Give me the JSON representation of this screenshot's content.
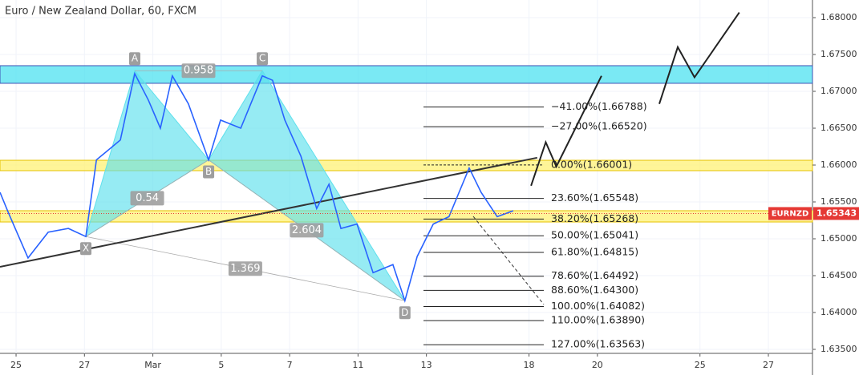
{
  "chart_data": {
    "type": "line",
    "title": "Euro / New Zealand Dollar, 60, FXCM",
    "x": [
      -0.47,
      -0.23,
      0.35,
      0.94,
      1.53,
      2.04,
      2.35,
      3.05,
      3.47,
      3.87,
      4.22,
      4.57,
      5.04,
      5.63,
      5.98,
      6.57,
      7.2,
      7.5,
      7.86,
      8.33,
      8.79,
      9.15,
      9.5,
      9.97,
      10.44,
      11.02,
      11.37,
      11.73,
      12.2,
      12.66,
      13.25,
      13.6,
      14.07,
      14.54
    ],
    "values": [
      1.6563,
      1.6536,
      1.6474,
      1.6509,
      1.6514,
      1.6503,
      1.6607,
      1.6634,
      1.6724,
      1.6688,
      1.665,
      1.6721,
      1.6683,
      1.6607,
      1.6661,
      1.665,
      1.6721,
      1.6715,
      1.6661,
      1.6612,
      1.6541,
      1.6574,
      1.6514,
      1.652,
      1.6454,
      1.6465,
      1.6416,
      1.6476,
      1.652,
      1.653,
      1.6596,
      1.6563,
      1.653,
      1.6538
    ],
    "color": "#2962ff",
    "xlim": [
      -0.47,
      23.29
    ],
    "ylim": [
      1.63348,
      1.68239
    ],
    "xticks": [
      {
        "value": 0,
        "label": "25"
      },
      {
        "value": 2,
        "label": "27"
      },
      {
        "value": 4,
        "label": "Mar"
      },
      {
        "value": 6,
        "label": "5"
      },
      {
        "value": 8,
        "label": "7"
      },
      {
        "value": 10,
        "label": "11"
      },
      {
        "value": 12,
        "label": "13"
      },
      {
        "value": 15,
        "label": "18"
      },
      {
        "value": 17,
        "label": "20"
      },
      {
        "value": 20,
        "label": "25"
      },
      {
        "value": 22,
        "label": "27"
      }
    ],
    "yticks": [
      {
        "value": 1.635,
        "label": "1.63500"
      },
      {
        "value": 1.64,
        "label": "1.64000"
      },
      {
        "value": 1.645,
        "label": "1.64500"
      },
      {
        "value": 1.65,
        "label": "1.65000"
      },
      {
        "value": 1.655,
        "label": "1.65500"
      },
      {
        "value": 1.66,
        "label": "1.66000"
      },
      {
        "value": 1.665,
        "label": "1.66500"
      },
      {
        "value": 1.67,
        "label": "1.67000"
      },
      {
        "value": 1.675,
        "label": "1.67500"
      },
      {
        "value": 1.68,
        "label": "1.68000"
      }
    ],
    "grid": true,
    "zones": [
      {
        "from": 1.67109,
        "to": 1.67348,
        "color": "#4ee2f0"
      },
      {
        "from": 1.65924,
        "to": 1.66065,
        "color": "#fff176"
      },
      {
        "from": 1.65228,
        "to": 1.65381,
        "color": "#fff176"
      }
    ],
    "pattern": {
      "color": "#5ee0ec",
      "points": [
        {
          "label": "X",
          "x": 2.04,
          "y": 1.6503
        },
        {
          "label": "A",
          "x": 3.47,
          "y": 1.6728
        },
        {
          "label": "B",
          "x": 5.63,
          "y": 1.6607
        },
        {
          "label": "C",
          "x": 7.2,
          "y": 1.6728
        },
        {
          "label": "D",
          "x": 11.37,
          "y": 1.6416
        }
      ],
      "ratios": [
        "0.54",
        "0.958",
        "2.604",
        "1.369"
      ]
    },
    "trendline": {
      "x": [
        -0.47,
        15.24
      ],
      "y": [
        1.6462,
        1.661
      ]
    },
    "projections": [
      {
        "x": [
          15.06,
          15.49,
          15.8,
          17.12
        ],
        "y": [
          1.6572,
          1.6631,
          1.6598,
          1.6721
        ]
      },
      {
        "x": [
          18.81,
          19.35,
          19.84,
          21.15
        ],
        "y": [
          1.6683,
          1.676,
          1.6719,
          1.6807
        ]
      }
    ],
    "fib_levels": [
      {
        "value": 1.66788,
        "label": "−41.00%(1.66788)"
      },
      {
        "value": 1.6652,
        "label": "−27.00%(1.66520)"
      },
      {
        "value": 1.66001,
        "label": "0.00%(1.66001)"
      },
      {
        "value": 1.65548,
        "label": "23.60%(1.65548)"
      },
      {
        "value": 1.65268,
        "label": "38.20%(1.65268)"
      },
      {
        "value": 1.65041,
        "label": "50.00%(1.65041)"
      },
      {
        "value": 1.64815,
        "label": "61.80%(1.64815)"
      },
      {
        "value": 1.64492,
        "label": "78.60%(1.64492)"
      },
      {
        "value": 1.643,
        "label": "88.60%(1.64300)"
      },
      {
        "value": 1.64082,
        "label": "100.00%(1.64082)"
      },
      {
        "value": 1.6389,
        "label": "110.00%(1.63890)"
      },
      {
        "value": 1.63563,
        "label": "127.00%(1.63563)"
      }
    ],
    "symbol": "EURNZD",
    "last_price": {
      "value": 1.65343,
      "label": "1.65343"
    }
  }
}
